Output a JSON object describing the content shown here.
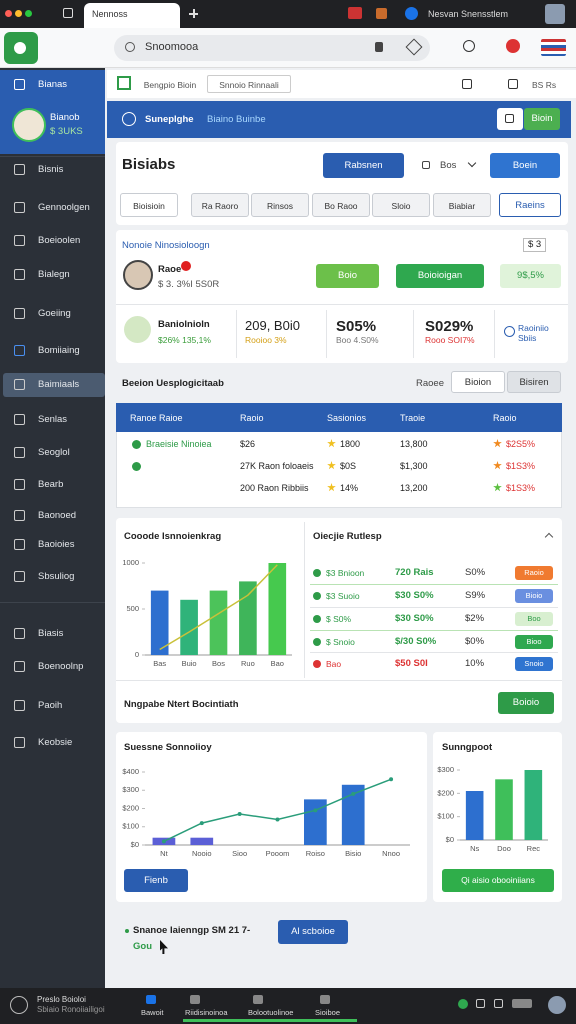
{
  "browser": {
    "tab": "Nennoss",
    "profile": "Nesvan Snensstlem",
    "address": "Snoomooa"
  },
  "sidebar": {
    "header": "Bianas",
    "user": {
      "name": "Bianob",
      "sub": "$ 3UKS"
    },
    "items": [
      "Bisnis",
      "Gennoolgen",
      "Boeioolen",
      "Bialegn",
      "Goeiing",
      "Bomiiaing",
      "Baimiaals",
      "Senlas",
      "Seoglol",
      "Bearb",
      "Baonoed",
      "Baoioies",
      "Sbsuliog",
      "Biasis",
      "Boenoolnp",
      "Paoih",
      "Keobsie"
    ],
    "active": 6
  },
  "topbar": {
    "tabs": [
      "Bengpio Bioin",
      "Snnoio Rinnaali"
    ],
    "code": "BS Rs"
  },
  "banner": {
    "title": "Suneplghe",
    "link": "Biaino Buinbe",
    "button": "Bioin"
  },
  "header": {
    "title": "Bisiabs",
    "primary": "Rabsnen",
    "select": "Bos",
    "secondary": "Boein",
    "filters": [
      "Bioisioin",
      "Ra Raoro",
      "Rinsos",
      "Bo Raoo",
      "Sloio",
      "Biabiar"
    ],
    "filter_action": "Raeins"
  },
  "profile_card": {
    "title": "Nonoie Ninosioloogn",
    "counter": "$ 3",
    "name": "Raoe",
    "stats": "$ 3. 3%I 5S0R",
    "button1": "Boio",
    "button2": "Boioioigan",
    "badge": "9$,5%",
    "tiles": [
      {
        "title": "Baniolnioln",
        "sub": "$26% 135,1%"
      },
      {
        "title": "209, B0i0",
        "sub": "Rooioo 3%"
      },
      {
        "title": "S05%",
        "sub": "Boo 4.S0%"
      },
      {
        "title": "S029%",
        "sub": "Rooo SOI7%"
      },
      {
        "title": "Raoiniio Sbiis"
      }
    ]
  },
  "section": {
    "title": "Beeion Uesplogicitaab",
    "label": "Raoee",
    "actions": [
      "Bioion",
      "Bisiren"
    ]
  },
  "table": {
    "columns": [
      "Ranoe Raioe",
      "Raoio",
      "Sasionios",
      "Traoie",
      "Raoio"
    ],
    "rows": [
      [
        "Braeisie Ninoiea",
        "$26",
        "1800",
        "13,800",
        "$2S5%"
      ],
      [
        null,
        "27K Raon foloaeis",
        "$0S",
        "$1,300",
        "$1S3%"
      ],
      [
        null,
        "200 Raon Ribbiis",
        "14%",
        "13,200",
        "$1S3%"
      ]
    ]
  },
  "performance": {
    "title": "Cooode Isnnoienkrag",
    "chart": {
      "type": "bar",
      "categories": [
        "Bas",
        "Buio",
        "Bos",
        "Ruo",
        "Bao"
      ],
      "ylim": [
        0,
        1000
      ],
      "yticks": [
        0,
        500,
        1000
      ],
      "grid": false,
      "series": [
        {
          "type": "bar",
          "colors": [
            "#2d6fcf",
            "#2fb37a",
            "#4cc35a",
            "#3fb55a",
            "#46c94e"
          ],
          "values": [
            700,
            600,
            700,
            800,
            1000
          ]
        },
        {
          "type": "line",
          "color": "#c9c13a",
          "values": [
            60,
            250,
            450,
            650,
            980
          ]
        }
      ]
    }
  },
  "list": {
    "title": "Oiecjie Rutlesp",
    "rows": [
      {
        "label": "$3 Bnioon",
        "amount": "720 Rais",
        "share": "S0%",
        "tag": "Raoio"
      },
      {
        "label": "$3 Suoio",
        "amount": "$30 S0%",
        "share": "S9%",
        "tag": "Bioio"
      },
      {
        "label": "$ S0%",
        "amount": "$30 S0%",
        "share": "$2%",
        "tag": "Boo"
      },
      {
        "label": "$ Snoio",
        "amount": "$/30 S0%",
        "share": "$0%",
        "tag": "Bioo"
      },
      {
        "label": "Bao",
        "amount": "$50 S0I",
        "share": "10%",
        "tag": "Snoio"
      }
    ],
    "footer": "Nngpabe Ntert Bocintiath",
    "button": "Boioio"
  },
  "sales": {
    "title": "Suessne Sonnoiioy",
    "button": "Fienb",
    "chart": {
      "type": "bar",
      "categories": [
        "Nt",
        "Nooio",
        "Sioo",
        "Pooom",
        "Roiso",
        "Bisio",
        "Nnoo"
      ],
      "ylim": [
        0,
        400
      ],
      "yticks": [
        {
          "value": 0,
          "label": "$0"
        },
        {
          "value": 100,
          "label": "$100"
        },
        {
          "value": 200,
          "label": "$200"
        },
        {
          "value": 300,
          "label": "$300"
        },
        {
          "value": 400,
          "label": "$400"
        }
      ],
      "grid": false,
      "series": [
        {
          "type": "bar",
          "color": "#5b5fd6",
          "values": [
            40,
            40,
            null,
            null,
            null,
            null,
            null
          ]
        },
        {
          "type": "bar",
          "color": "#2d6fcf",
          "values": [
            null,
            null,
            null,
            null,
            250,
            330,
            null
          ]
        },
        {
          "type": "line",
          "color": "#2a9d7a",
          "markers": true,
          "values": [
            20,
            120,
            170,
            140,
            190,
            280,
            360
          ]
        }
      ]
    }
  },
  "support": {
    "title": "Sunngpoot",
    "button": "Qi aisio obooiniians",
    "chart": {
      "type": "bar",
      "categories": [
        "Ns",
        "Doo",
        "Rec"
      ],
      "ylim": [
        0,
        300
      ],
      "yticks": [
        {
          "value": 0,
          "label": "$0"
        },
        {
          "value": 100,
          "label": "$100"
        },
        {
          "value": 200,
          "label": "$200"
        },
        {
          "value": 300,
          "label": "$300"
        }
      ],
      "grid": false,
      "series": [
        {
          "type": "bar",
          "colors": [
            "#2d6fcf",
            "#3fbf5a",
            "#2fb37a"
          ],
          "values": [
            210,
            260,
            300
          ]
        }
      ]
    }
  },
  "footer": {
    "text": "Snanoe Iaienngp SM 21 7-",
    "note": "Gou",
    "button": "Al scboioe"
  },
  "taskbar": {
    "title": "Preslo Boioloi",
    "sub": "Sbiaio Ronoiiailigoi",
    "items": [
      "Bawoit",
      "Riidisinoinoa",
      "Bolootuolinoe",
      "Sioiboe"
    ]
  }
}
